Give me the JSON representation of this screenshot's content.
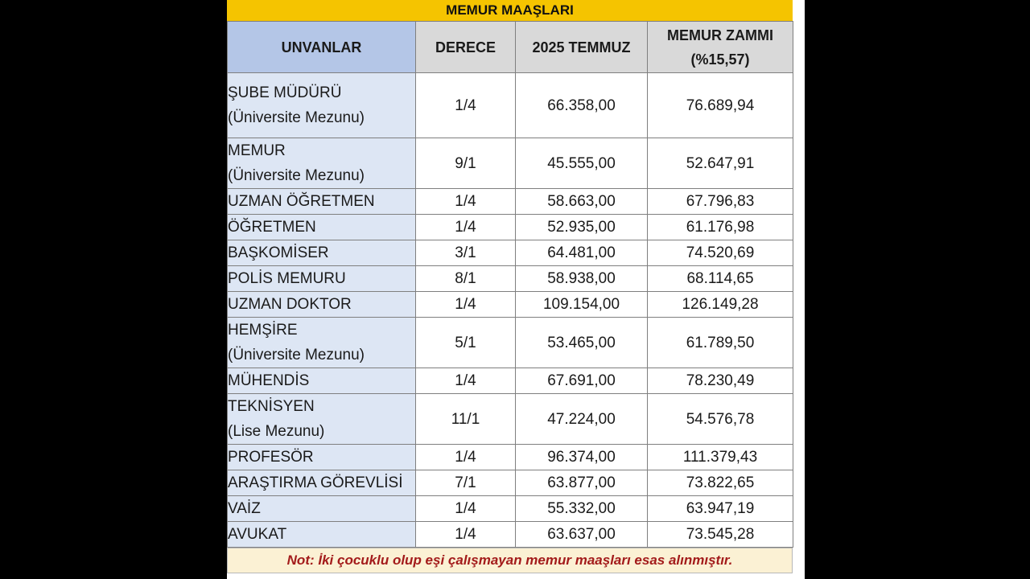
{
  "title": "MEMUR MAAŞLARI",
  "headers": {
    "col1": "UNVANLAR",
    "col2": "DERECE",
    "col3": "2025 TEMMUZ",
    "col4_line1": "MEMUR ZAMMI",
    "col4_line2": "(%15,57)"
  },
  "rows": [
    {
      "name_line1": "ŞUBE MÜDÜRÜ",
      "name_line2": "(Üniversite Mezunu)",
      "derece": "1/4",
      "temmuz": "66.358,00",
      "zam": "76.689,94"
    },
    {
      "name_line1": "MEMUR",
      "name_line2": "(Üniversite Mezunu)",
      "derece": "9/1",
      "temmuz": "45.555,00",
      "zam": "52.647,91"
    },
    {
      "name_line1": "UZMAN ÖĞRETMEN",
      "name_line2": "",
      "derece": "1/4",
      "temmuz": "58.663,00",
      "zam": "67.796,83"
    },
    {
      "name_line1": "ÖĞRETMEN",
      "name_line2": "",
      "derece": "1/4",
      "temmuz": "52.935,00",
      "zam": "61.176,98"
    },
    {
      "name_line1": "BAŞKOMİSER",
      "name_line2": "",
      "derece": "3/1",
      "temmuz": "64.481,00",
      "zam": "74.520,69"
    },
    {
      "name_line1": "POLİS MEMURU",
      "name_line2": "",
      "derece": "8/1",
      "temmuz": "58.938,00",
      "zam": "68.114,65"
    },
    {
      "name_line1": "UZMAN DOKTOR",
      "name_line2": "",
      "derece": "1/4",
      "temmuz": "109.154,00",
      "zam": "126.149,28"
    },
    {
      "name_line1": "HEMŞİRE",
      "name_line2": "(Üniversite Mezunu)",
      "derece": "5/1",
      "temmuz": "53.465,00",
      "zam": "61.789,50"
    },
    {
      "name_line1": "MÜHENDİS",
      "name_line2": "",
      "derece": "1/4",
      "temmuz": "67.691,00",
      "zam": "78.230,49"
    },
    {
      "name_line1": "TEKNİSYEN",
      "name_line2": "(Lise Mezunu)",
      "derece": "11/1",
      "temmuz": "47.224,00",
      "zam": "54.576,78"
    },
    {
      "name_line1": "PROFESÖR",
      "name_line2": "",
      "derece": "1/4",
      "temmuz": "96.374,00",
      "zam": "111.379,43"
    },
    {
      "name_line1": "ARAŞTIRMA GÖREVLİSİ",
      "name_line2": "",
      "derece": "7/1",
      "temmuz": "63.877,00",
      "zam": "73.822,65"
    },
    {
      "name_line1": "VAİZ",
      "name_line2": "",
      "derece": "1/4",
      "temmuz": "55.332,00",
      "zam": "63.947,19"
    },
    {
      "name_line1": "AVUKAT",
      "name_line2": "",
      "derece": "1/4",
      "temmuz": "63.637,00",
      "zam": "73.545,28"
    }
  ],
  "note": "Not: İki çocuklu olup eşi çalışmayan memur maaşları esas alınmıştır.",
  "colors": {
    "title_bg": "#f5c400",
    "header_name_bg": "#b4c6e7",
    "header_bg": "#d9d9d9",
    "name_cell_bg": "#dde6f4",
    "note_bg": "#fbf1d4",
    "note_text": "#a31b1b"
  }
}
